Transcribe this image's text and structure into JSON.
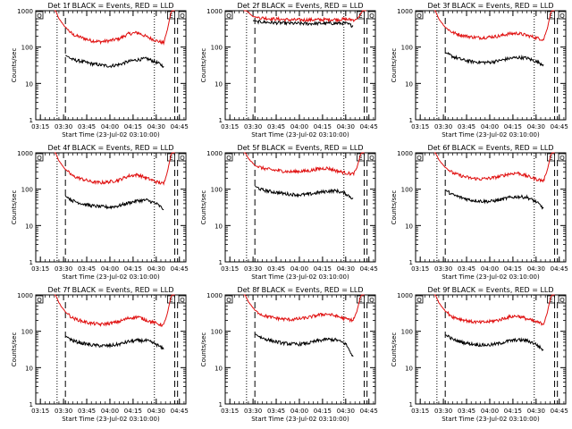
{
  "colors": {
    "events": "#000000",
    "lld": "#e01010",
    "frame": "#000000"
  },
  "chart_data": [
    {
      "type": "line",
      "detector": "1f",
      "title": "Det 1f BLACK = Events, RED = LLD",
      "xlabel": "Start Time (23-Jul-02 03:10:00)",
      "ylabel": "Counts/sec",
      "yscale": "log",
      "ylim": [
        1,
        1000
      ],
      "xlim": [
        3.2,
        4.82
      ],
      "xtick_labels": [
        "03:15",
        "03:30",
        "03:45",
        "04:00",
        "04:15",
        "04:30",
        "04:45"
      ],
      "ytick_labels": [
        "1",
        "10",
        "100",
        "1000"
      ],
      "markers": [
        "Q",
        "E",
        "Q"
      ],
      "dotted_lines": [
        3.43,
        4.48
      ],
      "dashed_lines": [
        3.52,
        4.7,
        4.73
      ],
      "series": [
        {
          "name": "RED = LLD",
          "x": [
            3.4,
            3.45,
            3.52,
            3.6,
            3.7,
            3.8,
            3.9,
            4.0,
            4.1,
            4.2,
            4.3,
            4.4,
            4.5,
            4.58,
            4.62,
            4.66,
            4.7
          ],
          "y": [
            1200,
            600,
            350,
            220,
            180,
            150,
            140,
            150,
            170,
            230,
            250,
            190,
            150,
            130,
            300,
            900,
            1300
          ]
        },
        {
          "name": "BLACK = Events",
          "x": [
            3.52,
            3.6,
            3.7,
            3.8,
            3.9,
            4.0,
            4.1,
            4.2,
            4.3,
            4.4,
            4.5,
            4.58
          ],
          "y": [
            60,
            45,
            40,
            35,
            32,
            30,
            33,
            40,
            45,
            48,
            38,
            30
          ]
        }
      ]
    },
    {
      "type": "line",
      "detector": "2f",
      "title": "Det 2f BLACK = Events, RED = LLD",
      "xlabel": "Start Time (23-Jul-02 03:10:00)",
      "ylabel": "Counts/sec",
      "yscale": "log",
      "ylim": [
        1,
        1000
      ],
      "xlim": [
        3.2,
        4.82
      ],
      "xtick_labels": [
        "03:15",
        "03:30",
        "03:45",
        "04:00",
        "04:15",
        "04:30",
        "04:45"
      ],
      "ytick_labels": [
        "1",
        "10",
        "100",
        "1000"
      ],
      "markers": [
        "Q",
        "E",
        "Q"
      ],
      "dotted_lines": [
        3.43,
        4.48
      ],
      "dashed_lines": [
        3.52,
        4.7,
        4.73
      ],
      "series": [
        {
          "name": "RED = LLD",
          "x": [
            3.4,
            3.45,
            3.5,
            3.55,
            3.7,
            3.9,
            4.1,
            4.3,
            4.5,
            4.6,
            4.64,
            4.68,
            4.72
          ],
          "y": [
            1200,
            900,
            700,
            650,
            600,
            560,
            560,
            570,
            580,
            560,
            650,
            1000,
            1300
          ]
        },
        {
          "name": "BLACK = Events",
          "x": [
            3.5,
            3.55,
            3.7,
            3.9,
            4.1,
            4.3,
            4.5,
            4.58
          ],
          "y": [
            540,
            500,
            470,
            450,
            440,
            450,
            450,
            380
          ]
        }
      ]
    },
    {
      "type": "line",
      "detector": "3f",
      "title": "Det 3f BLACK = Events, RED = LLD",
      "xlabel": "Start Time (23-Jul-02 03:10:00)",
      "ylabel": "Counts/sec",
      "yscale": "log",
      "ylim": [
        1,
        1000
      ],
      "xlim": [
        3.2,
        4.82
      ],
      "xtick_labels": [
        "03:15",
        "03:30",
        "03:45",
        "04:00",
        "04:15",
        "04:30",
        "04:45"
      ],
      "ytick_labels": [
        "1",
        "10",
        "100",
        "1000"
      ],
      "markers": [
        "Q",
        "E",
        "Q"
      ],
      "dotted_lines": [
        3.43,
        4.48
      ],
      "dashed_lines": [
        3.52,
        4.7,
        4.73
      ],
      "series": [
        {
          "name": "RED = LLD",
          "x": [
            3.4,
            3.45,
            3.52,
            3.6,
            3.7,
            3.8,
            3.9,
            4.0,
            4.1,
            4.2,
            4.3,
            4.4,
            4.5,
            4.58,
            4.62,
            4.66,
            4.7
          ],
          "y": [
            1200,
            600,
            350,
            250,
            210,
            190,
            180,
            190,
            200,
            230,
            240,
            210,
            180,
            160,
            320,
            900,
            1300
          ]
        },
        {
          "name": "BLACK = Events",
          "x": [
            3.52,
            3.6,
            3.7,
            3.8,
            3.9,
            4.0,
            4.1,
            4.2,
            4.3,
            4.4,
            4.5,
            4.58
          ],
          "y": [
            70,
            55,
            45,
            40,
            38,
            38,
            42,
            48,
            52,
            50,
            40,
            33
          ]
        }
      ]
    },
    {
      "type": "line",
      "detector": "4f",
      "title": "Det 4f BLACK = Events, RED = LLD",
      "xlabel": "Start Time (23-Jul-02 03:10:00)",
      "ylabel": "Counts/sec",
      "yscale": "log",
      "ylim": [
        1,
        1000
      ],
      "xlim": [
        3.2,
        4.82
      ],
      "xtick_labels": [
        "03:15",
        "03:30",
        "03:45",
        "04:00",
        "04:15",
        "04:30",
        "04:45"
      ],
      "ytick_labels": [
        "1",
        "10",
        "100",
        "1000"
      ],
      "markers": [
        "Q",
        "E",
        "Q"
      ],
      "dotted_lines": [
        3.43,
        4.48
      ],
      "dashed_lines": [
        3.52,
        4.7,
        4.73
      ],
      "series": [
        {
          "name": "RED = LLD",
          "x": [
            3.4,
            3.45,
            3.52,
            3.6,
            3.7,
            3.8,
            3.9,
            4.0,
            4.1,
            4.2,
            4.3,
            4.4,
            4.5,
            4.58,
            4.62,
            4.66,
            4.7
          ],
          "y": [
            1200,
            600,
            350,
            230,
            190,
            160,
            150,
            160,
            180,
            230,
            250,
            200,
            160,
            140,
            300,
            900,
            1300
          ]
        },
        {
          "name": "BLACK = Events",
          "x": [
            3.52,
            3.6,
            3.7,
            3.8,
            3.9,
            4.0,
            4.1,
            4.2,
            4.3,
            4.4,
            4.5,
            4.58
          ],
          "y": [
            65,
            48,
            40,
            35,
            33,
            32,
            35,
            42,
            48,
            50,
            40,
            28
          ]
        }
      ]
    },
    {
      "type": "line",
      "detector": "5f",
      "title": "Det 5f BLACK = Events, RED = LLD",
      "xlabel": "Start Time (23-Jul-02 03:10:00)",
      "ylabel": "Counts/sec",
      "yscale": "log",
      "ylim": [
        1,
        1000
      ],
      "xlim": [
        3.2,
        4.82
      ],
      "xtick_labels": [
        "03:15",
        "03:30",
        "03:45",
        "04:00",
        "04:15",
        "04:30",
        "04:45"
      ],
      "ytick_labels": [
        "1",
        "10",
        "100",
        "1000"
      ],
      "markers": [
        "Q",
        "E",
        "Q"
      ],
      "dotted_lines": [
        3.43,
        4.48
      ],
      "dashed_lines": [
        3.52,
        4.7,
        4.73
      ],
      "series": [
        {
          "name": "RED = LLD",
          "x": [
            3.4,
            3.45,
            3.52,
            3.6,
            3.7,
            3.8,
            3.9,
            4.0,
            4.1,
            4.2,
            4.3,
            4.4,
            4.5,
            4.58,
            4.62,
            4.66,
            4.7
          ],
          "y": [
            1200,
            700,
            450,
            380,
            340,
            320,
            300,
            310,
            320,
            360,
            380,
            320,
            280,
            260,
            380,
            900,
            1300
          ]
        },
        {
          "name": "BLACK = Events",
          "x": [
            3.52,
            3.6,
            3.7,
            3.8,
            3.9,
            4.0,
            4.1,
            4.2,
            4.3,
            4.4,
            4.5,
            4.58
          ],
          "y": [
            120,
            95,
            85,
            78,
            72,
            70,
            72,
            80,
            88,
            90,
            75,
            55
          ]
        }
      ]
    },
    {
      "type": "line",
      "detector": "6f",
      "title": "Det 6f BLACK = Events, RED = LLD",
      "xlabel": "Start Time (23-Jul-02 03:10:00)",
      "ylabel": "Counts/sec",
      "yscale": "log",
      "ylim": [
        1,
        1000
      ],
      "xlim": [
        3.2,
        4.82
      ],
      "xtick_labels": [
        "03:15",
        "03:30",
        "03:45",
        "04:00",
        "04:15",
        "04:30",
        "04:45"
      ],
      "ytick_labels": [
        "1",
        "10",
        "100",
        "1000"
      ],
      "markers": [
        "Q",
        "E",
        "Q"
      ],
      "dotted_lines": [
        3.43,
        4.48
      ],
      "dashed_lines": [
        3.52,
        4.7,
        4.73
      ],
      "series": [
        {
          "name": "RED = LLD",
          "x": [
            3.4,
            3.45,
            3.52,
            3.6,
            3.7,
            3.8,
            3.9,
            4.0,
            4.1,
            4.2,
            4.3,
            4.4,
            4.5,
            4.58,
            4.62,
            4.66,
            4.7
          ],
          "y": [
            1200,
            650,
            400,
            280,
            230,
            200,
            190,
            200,
            220,
            260,
            280,
            230,
            190,
            170,
            330,
            900,
            1300
          ]
        },
        {
          "name": "BLACK = Events",
          "x": [
            3.52,
            3.6,
            3.7,
            3.8,
            3.9,
            4.0,
            4.1,
            4.2,
            4.3,
            4.4,
            4.5,
            4.58
          ],
          "y": [
            95,
            70,
            58,
            50,
            47,
            46,
            50,
            58,
            62,
            60,
            45,
            30
          ]
        }
      ]
    },
    {
      "type": "line",
      "detector": "7f",
      "title": "Det 7f BLACK = Events, RED = LLD",
      "xlabel": "Start Time (23-Jul-02 03:10:00)",
      "ylabel": "Counts/sec",
      "yscale": "log",
      "ylim": [
        1,
        1000
      ],
      "xlim": [
        3.2,
        4.82
      ],
      "xtick_labels": [
        "03:15",
        "03:30",
        "03:45",
        "04:00",
        "04:15",
        "04:30",
        "04:45"
      ],
      "ytick_labels": [
        "1",
        "10",
        "100",
        "1000"
      ],
      "markers": [
        "Q",
        "E",
        "Q"
      ],
      "dotted_lines": [
        3.43,
        4.48
      ],
      "dashed_lines": [
        3.52,
        4.7,
        4.73
      ],
      "series": [
        {
          "name": "RED = LLD",
          "x": [
            3.4,
            3.45,
            3.52,
            3.6,
            3.7,
            3.8,
            3.9,
            4.0,
            4.1,
            4.2,
            4.3,
            4.4,
            4.5,
            4.58,
            4.62,
            4.66,
            4.7
          ],
          "y": [
            1200,
            600,
            340,
            230,
            190,
            165,
            155,
            165,
            185,
            230,
            250,
            200,
            165,
            145,
            310,
            900,
            1300
          ]
        },
        {
          "name": "BLACK = Events",
          "x": [
            3.52,
            3.6,
            3.7,
            3.8,
            3.9,
            4.0,
            4.1,
            4.2,
            4.3,
            4.4,
            4.5,
            4.58
          ],
          "y": [
            75,
            55,
            47,
            42,
            40,
            40,
            44,
            52,
            56,
            55,
            44,
            32
          ]
        }
      ]
    },
    {
      "type": "line",
      "detector": "8f",
      "title": "Det 8f BLACK = Events, RED = LLD",
      "xlabel": "Start Time (23-Jul-02 03:10:00)",
      "ylabel": "Counts/sec",
      "yscale": "log",
      "ylim": [
        1,
        1000
      ],
      "xlim": [
        3.2,
        4.82
      ],
      "xtick_labels": [
        "03:15",
        "03:30",
        "03:45",
        "04:00",
        "04:15",
        "04:30",
        "04:45"
      ],
      "ytick_labels": [
        "1",
        "10",
        "100",
        "1000"
      ],
      "markers": [
        "Q",
        "E",
        "Q"
      ],
      "dotted_lines": [
        3.43,
        4.48
      ],
      "dashed_lines": [
        3.52,
        4.7,
        4.73
      ],
      "series": [
        {
          "name": "RED = LLD",
          "x": [
            3.4,
            3.45,
            3.52,
            3.6,
            3.7,
            3.8,
            3.9,
            4.0,
            4.1,
            4.2,
            4.3,
            4.4,
            4.5,
            4.58,
            4.62,
            4.66,
            4.7
          ],
          "y": [
            1200,
            650,
            380,
            280,
            240,
            220,
            210,
            220,
            240,
            280,
            300,
            260,
            220,
            200,
            350,
            900,
            1300
          ]
        },
        {
          "name": "BLACK = Events",
          "x": [
            3.52,
            3.6,
            3.7,
            3.8,
            3.9,
            4.0,
            4.1,
            4.2,
            4.3,
            4.4,
            4.5,
            4.58
          ],
          "y": [
            85,
            65,
            55,
            48,
            45,
            44,
            47,
            55,
            60,
            58,
            45,
            20
          ]
        }
      ]
    },
    {
      "type": "line",
      "detector": "9f",
      "title": "Det 9f BLACK = Events, RED = LLD",
      "xlabel": "Start Time (23-Jul-02 03:10:00)",
      "ylabel": "Counts/sec",
      "yscale": "log",
      "ylim": [
        1,
        1000
      ],
      "xlim": [
        3.2,
        4.82
      ],
      "xtick_labels": [
        "03:15",
        "03:30",
        "03:45",
        "04:00",
        "04:15",
        "04:30",
        "04:45"
      ],
      "ytick_labels": [
        "1",
        "10",
        "100",
        "1000"
      ],
      "markers": [
        "Q",
        "E",
        "Q"
      ],
      "dotted_lines": [
        3.43,
        4.48
      ],
      "dashed_lines": [
        3.52,
        4.7,
        4.73
      ],
      "series": [
        {
          "name": "RED = LLD",
          "x": [
            3.4,
            3.45,
            3.52,
            3.6,
            3.7,
            3.8,
            3.9,
            4.0,
            4.1,
            4.2,
            4.3,
            4.4,
            4.5,
            4.58,
            4.62,
            4.66,
            4.7
          ],
          "y": [
            1200,
            620,
            360,
            250,
            210,
            185,
            175,
            185,
            205,
            245,
            265,
            220,
            180,
            160,
            320,
            900,
            1300
          ]
        },
        {
          "name": "BLACK = Events",
          "x": [
            3.52,
            3.6,
            3.7,
            3.8,
            3.9,
            4.0,
            4.1,
            4.2,
            4.3,
            4.4,
            4.5,
            4.58
          ],
          "y": [
            80,
            60,
            50,
            45,
            42,
            42,
            46,
            54,
            58,
            56,
            44,
            30
          ]
        }
      ]
    }
  ]
}
